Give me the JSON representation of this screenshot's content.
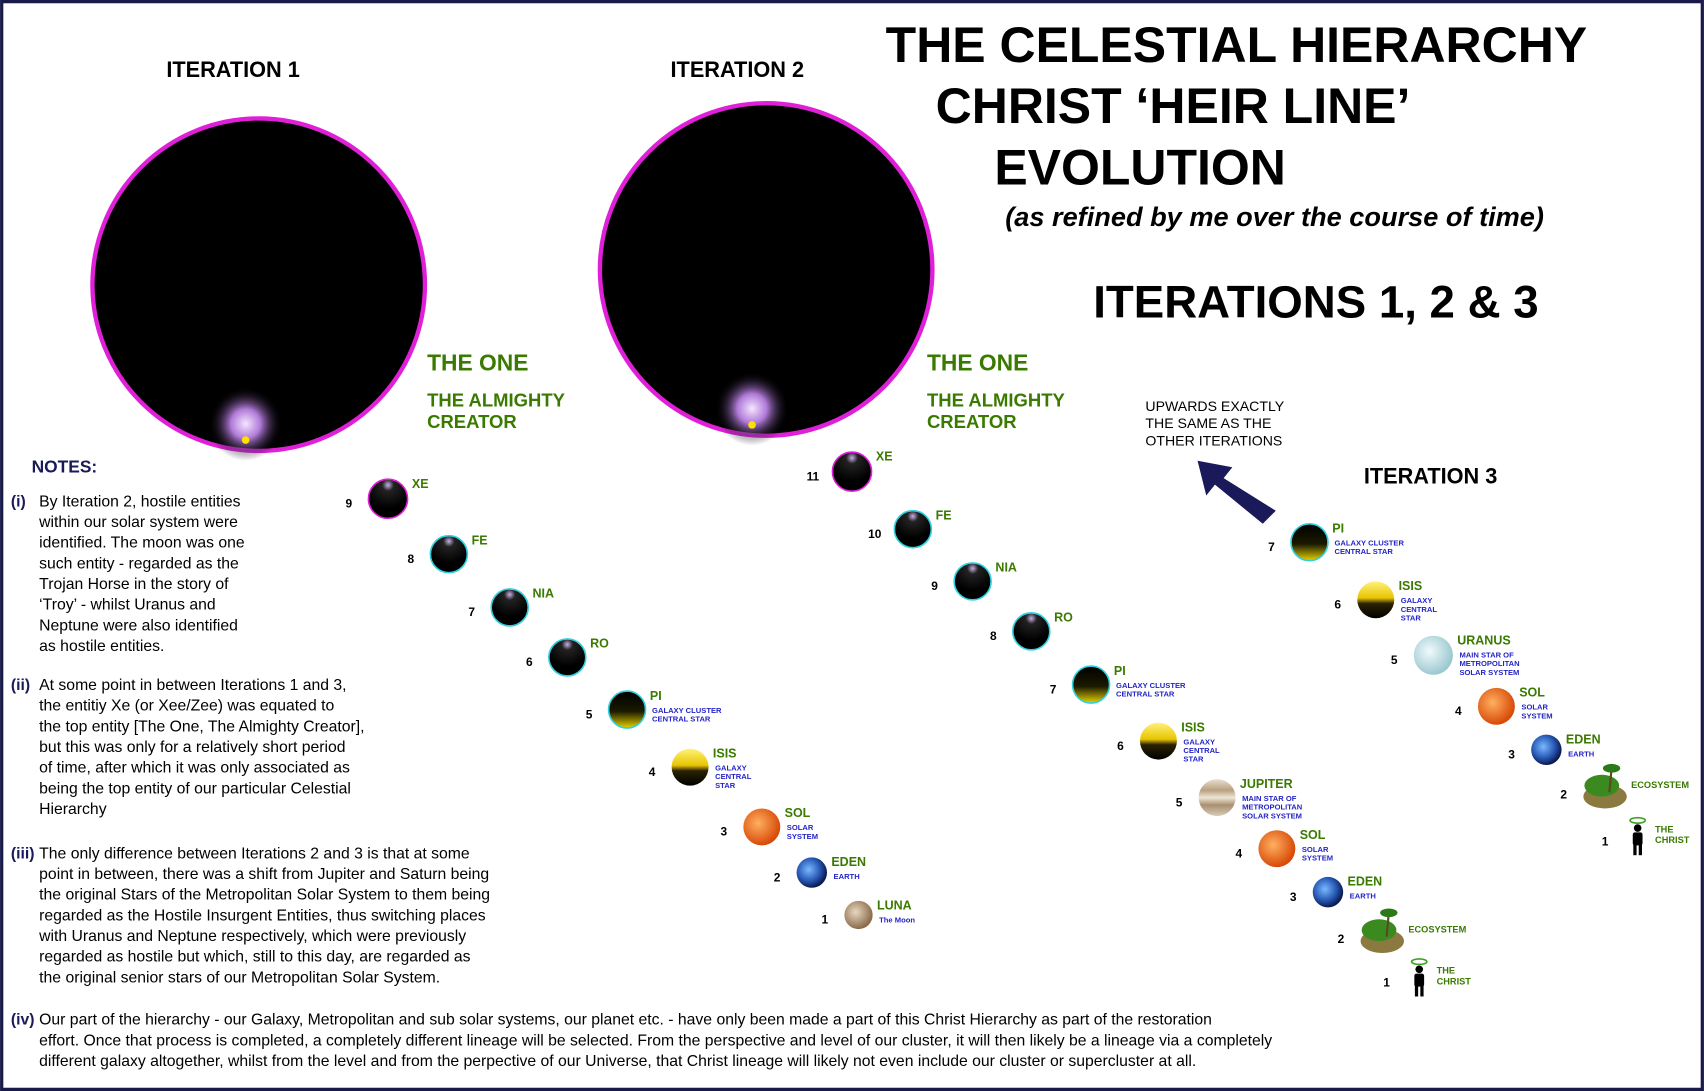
{
  "title": [
    "THE CELESTIAL HIERARCHY",
    "CHRIST ‘HEIR LINE’",
    "EVOLUTION"
  ],
  "subtitle": "(as refined by me over the course of time)",
  "heading": "ITERATIONS 1, 2 & 3",
  "iterations": [
    {
      "label": "ITERATION 1",
      "one": "THE ONE",
      "creator": [
        "THE ALMIGHTY",
        "CREATOR"
      ],
      "nodes": [
        {
          "number": "9",
          "name": [
            "XE"
          ]
        },
        {
          "number": "8",
          "name": [
            "FE"
          ]
        },
        {
          "number": "7",
          "name": [
            "NIA"
          ]
        },
        {
          "number": "6",
          "name": [
            "RO"
          ]
        },
        {
          "number": "5",
          "name": [
            "PI"
          ],
          "sub": [
            "GALAXY CLUSTER",
            "CENTRAL STAR"
          ]
        },
        {
          "number": "4",
          "name": [
            "ISIS"
          ],
          "sub": [
            "GALAXY",
            "CENTRAL",
            "STAR"
          ]
        },
        {
          "number": "3",
          "name": [
            "SOL"
          ],
          "sub": [
            "SOLAR",
            "SYSTEM"
          ]
        },
        {
          "number": "2",
          "name": [
            "EDEN"
          ],
          "sub": [
            "EARTH"
          ]
        },
        {
          "number": "1",
          "name": [
            "LUNA"
          ],
          "sub": [
            "The Moon"
          ]
        }
      ]
    },
    {
      "label": "ITERATION 2",
      "one": "THE ONE",
      "creator": [
        "THE ALMIGHTY",
        "CREATOR"
      ],
      "nodes": [
        {
          "number": "11",
          "name": [
            "XE"
          ]
        },
        {
          "number": "10",
          "name": [
            "FE"
          ]
        },
        {
          "number": "9",
          "name": [
            "NIA"
          ]
        },
        {
          "number": "8",
          "name": [
            "RO"
          ]
        },
        {
          "number": "7",
          "name": [
            "PI"
          ],
          "sub": [
            "GALAXY CLUSTER",
            "CENTRAL STAR"
          ]
        },
        {
          "number": "6",
          "name": [
            "ISIS"
          ],
          "sub": [
            "GALAXY",
            "CENTRAL",
            "STAR"
          ]
        },
        {
          "number": "5",
          "name": [
            "JUPITER"
          ],
          "sub": [
            "MAIN STAR OF",
            "METROPOLITAN",
            "SOLAR SYSTEM"
          ]
        },
        {
          "number": "4",
          "name": [
            "SOL"
          ],
          "sub": [
            "SOLAR",
            "SYSTEM"
          ]
        },
        {
          "number": "3",
          "name": [
            "EDEN"
          ],
          "sub": [
            "EARTH"
          ]
        },
        {
          "number": "2",
          "name": [
            "ECOSYSTEM"
          ]
        },
        {
          "number": "1",
          "name": [
            "THE",
            "CHRIST"
          ]
        }
      ]
    },
    {
      "label": "ITERATION 3",
      "upwards": [
        "UPWARDS EXACTLY",
        "THE SAME AS THE",
        "OTHER ITERATIONS"
      ],
      "nodes": [
        {
          "number": "7",
          "name": [
            "PI"
          ],
          "sub": [
            "GALAXY CLUSTER",
            "CENTRAL STAR"
          ]
        },
        {
          "number": "6",
          "name": [
            "ISIS"
          ],
          "sub": [
            "GALAXY",
            "CENTRAL",
            "STAR"
          ]
        },
        {
          "number": "5",
          "name": [
            "URANUS"
          ],
          "sub": [
            "MAIN STAR OF",
            "METROPOLITAN",
            "SOLAR SYSTEM"
          ]
        },
        {
          "number": "4",
          "name": [
            "SOL"
          ],
          "sub": [
            "SOLAR",
            "SYSTEM"
          ]
        },
        {
          "number": "3",
          "name": [
            "EDEN"
          ],
          "sub": [
            "EARTH"
          ]
        },
        {
          "number": "2",
          "name": [
            "ECOSYSTEM"
          ]
        },
        {
          "number": "1",
          "name": [
            "THE",
            "CHRIST"
          ]
        }
      ]
    }
  ],
  "notes": {
    "heading": "NOTES:",
    "items": [
      {
        "marker": "(i)",
        "lines": [
          "By Iteration 2, hostile entities",
          "within our solar system were",
          "identified. The moon was one",
          "such entity - regarded as the",
          "Trojan Horse in the story of",
          "‘Troy’ - whilst Uranus and",
          "Neptune were also identified",
          "as hostile entities."
        ]
      },
      {
        "marker": "(ii)",
        "lines": [
          "At some point in between Iterations 1 and 3,",
          "the entitiy Xe (or Xee/Zee) was equated to",
          "the top entity [The One, The Almighty Creator],",
          "but this was only for a relatively short period",
          "of time, after which it was only associated as",
          "being the top entity of our particular Celestial",
          "Hierarchy"
        ]
      },
      {
        "marker": "(iii)",
        "lines": [
          "The only difference between Iterations 2 and 3 is that at some",
          "point in between, there was a shift from Jupiter and Saturn being",
          "the original Stars of the Metropolitan Solar System to them being",
          "regarded as the Hostile Insurgent Entities, thus switching places",
          "with Uranus and Neptune respectively, which were previously",
          "regarded as hostile but which, still to this day, are regarded as",
          "the original senior stars of our Metropolitan Solar System."
        ]
      },
      {
        "marker": "(iv)",
        "lines": [
          "Our part of the hierarchy - our Galaxy, Metropolitan and sub solar systems, our planet etc. - have only been made a part of this Christ Hierarchy as part of the restoration",
          "effort.  Once that process is completed, a completely different lineage will be selected.  From the perspective and level of our cluster, it will then likely be a lineage via a completely",
          "different galaxy altogether, whilst from the level and from the perpective of our Universe, that Christ lineage will likely not even include our cluster or supercluster at all."
        ]
      }
    ]
  }
}
